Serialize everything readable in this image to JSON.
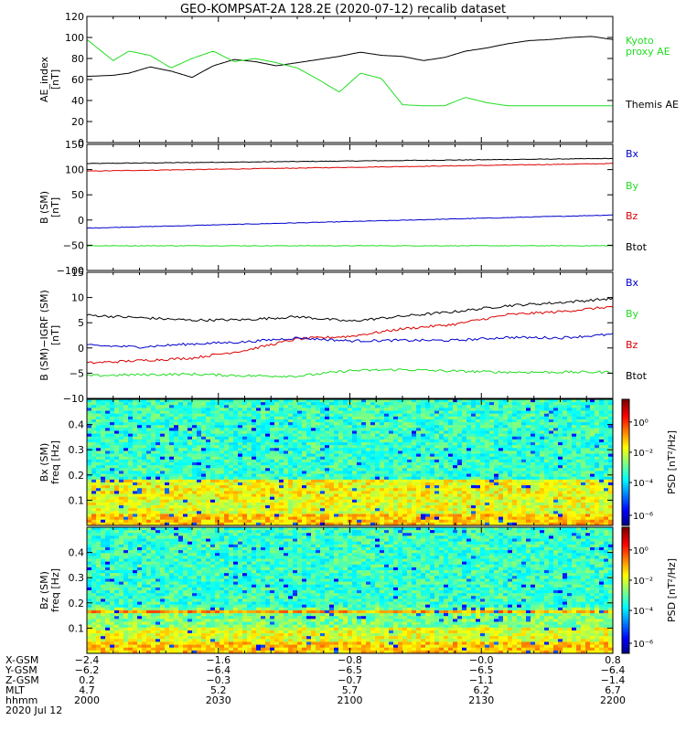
{
  "title": "GEO-KOMPSAT-2A 128.2E (2020-07-12) recalib dataset",
  "colors": {
    "black": "#000000",
    "red": "#dd0000",
    "green": "#22dd22",
    "blue": "#0000cc",
    "kyoto": "#22dd22"
  },
  "chart_data": [
    {
      "type": "line",
      "panel": "ae",
      "ylabel": "AE_index",
      "yunit": "[nT]",
      "ylim": [
        0,
        120
      ],
      "yticks": [
        "0",
        "20",
        "40",
        "60",
        "80",
        "100",
        "120"
      ],
      "ytick_values": [
        0,
        20,
        40,
        60,
        80,
        100,
        120
      ],
      "x": [
        0,
        5,
        8,
        12,
        16,
        20,
        24,
        28,
        32,
        36,
        40,
        44,
        48,
        52,
        56,
        60,
        64,
        68,
        72,
        76,
        80,
        84,
        88,
        92,
        96,
        100
      ],
      "series": [
        {
          "name": "Themis AE",
          "color": "#000000",
          "values": [
            63,
            64,
            66,
            72,
            68,
            62,
            73,
            79,
            77,
            73,
            76,
            79,
            82,
            86,
            83,
            82,
            78,
            81,
            87,
            90,
            94,
            97,
            98,
            100,
            101,
            98
          ]
        },
        {
          "name": "Kyoto proxy AE",
          "color": "#22dd22",
          "values": [
            98,
            78,
            87,
            83,
            71,
            80,
            87,
            77,
            80,
            76,
            71,
            60,
            48,
            66,
            61,
            36,
            35,
            35,
            43,
            38,
            35,
            35,
            35,
            35,
            35,
            35
          ]
        }
      ],
      "legend": [
        "Kyoto",
        "proxy AE",
        "Themis AE"
      ]
    },
    {
      "type": "line",
      "panel": "bsm",
      "ylabel": "B (SM)",
      "yunit": "[nT]",
      "ylim": [
        -100,
        150
      ],
      "yticks": [
        "−100",
        "−50",
        "0",
        "50",
        "100",
        "150"
      ],
      "ytick_values": [
        -100,
        -50,
        0,
        50,
        100,
        150
      ],
      "x": [
        0,
        100
      ],
      "series": [
        {
          "name": "Btot",
          "color": "#000000",
          "values": [
            112,
            122
          ]
        },
        {
          "name": "Bz",
          "color": "#dd0000",
          "values": [
            97,
            112
          ]
        },
        {
          "name": "Bx",
          "color": "#0000cc",
          "values": [
            -16,
            10
          ]
        },
        {
          "name": "By",
          "color": "#22dd22",
          "values": [
            -51,
            -51
          ]
        }
      ],
      "legend": [
        "Bx",
        "By",
        "Bz",
        "Btot"
      ]
    },
    {
      "type": "line",
      "panel": "bigrf",
      "ylabel": "B (SM)−IGRF (SM)",
      "yunit": "[nT]",
      "ylim": [
        -10,
        15
      ],
      "yticks": [
        "−10",
        "−5",
        "0",
        "5",
        "10",
        "15"
      ],
      "ytick_values": [
        -10,
        -5,
        0,
        5,
        10,
        15
      ],
      "x": [
        0,
        10,
        20,
        30,
        40,
        50,
        60,
        70,
        80,
        90,
        100
      ],
      "series": [
        {
          "name": "Btot",
          "color": "#000000",
          "values": [
            6.5,
            6,
            5.5,
            5.6,
            6.2,
            5.3,
            6.3,
            7.2,
            8.4,
            9,
            9.8
          ]
        },
        {
          "name": "Bz",
          "color": "#dd0000",
          "values": [
            -3,
            -2.5,
            -2,
            -0.5,
            1.8,
            2.3,
            3.8,
            4.7,
            6.6,
            7.2,
            8.2
          ]
        },
        {
          "name": "Bx",
          "color": "#0000cc",
          "values": [
            0.5,
            0.2,
            0.8,
            1.2,
            2,
            1.4,
            1.5,
            1.5,
            2.1,
            2,
            2.7
          ]
        },
        {
          "name": "By",
          "color": "#22dd22",
          "values": [
            -5.5,
            -5.3,
            -5.2,
            -5.5,
            -5.6,
            -4.5,
            -4.3,
            -4.6,
            -4.8,
            -4.8,
            -4.8
          ]
        }
      ],
      "legend": [
        "Bx",
        "By",
        "Bz",
        "Btot"
      ]
    },
    {
      "type": "heatmap",
      "panel": "bx_spec",
      "ylabel": "Bx (SM)",
      "yunit": "freq [Hz]",
      "ylim": [
        0,
        0.5
      ],
      "yticks": [
        "0.1",
        "0.2",
        "0.3",
        "0.4"
      ],
      "ytick_values": [
        0.1,
        0.2,
        0.3,
        0.4
      ],
      "colorbar": {
        "label": "PSD [nT²/Hz]",
        "ticks": [
          "10⁰",
          "10⁻²",
          "10⁻⁴",
          "10⁻⁶"
        ]
      }
    },
    {
      "type": "heatmap",
      "panel": "bz_spec",
      "ylabel": "Bz (SM)",
      "yunit": "freq [Hz]",
      "ylim": [
        0,
        0.5
      ],
      "yticks": [
        "0.1",
        "0.2",
        "0.3",
        "0.4"
      ],
      "ytick_values": [
        0.1,
        0.2,
        0.3,
        0.4
      ],
      "colorbar": {
        "label": "PSD [nT²/Hz]",
        "ticks": [
          "10⁰",
          "10⁻²",
          "10⁻⁴",
          "10⁻⁶"
        ]
      }
    }
  ],
  "xaxis": {
    "row_labels": [
      "X-GSM",
      "Y-GSM",
      "Z-GSM",
      "MLT",
      "hhmm",
      "2020 Jul 12"
    ],
    "columns": [
      {
        "pos": 0,
        "values": [
          "−2.4",
          "−6.2",
          "0.2",
          "4.7",
          "2000"
        ]
      },
      {
        "pos": 25,
        "values": [
          "−1.6",
          "−6.4",
          "−0.3",
          "5.2",
          "2030"
        ]
      },
      {
        "pos": 50,
        "values": [
          "−0.8",
          "−6.5",
          "−0.7",
          "5.7",
          "2100"
        ]
      },
      {
        "pos": 75,
        "values": [
          "−0.0",
          "−6.5",
          "−1.1",
          "6.2",
          "2130"
        ]
      },
      {
        "pos": 100,
        "values": [
          "0.8",
          "−6.4",
          "−1.4",
          "6.7",
          "2200"
        ]
      }
    ]
  }
}
